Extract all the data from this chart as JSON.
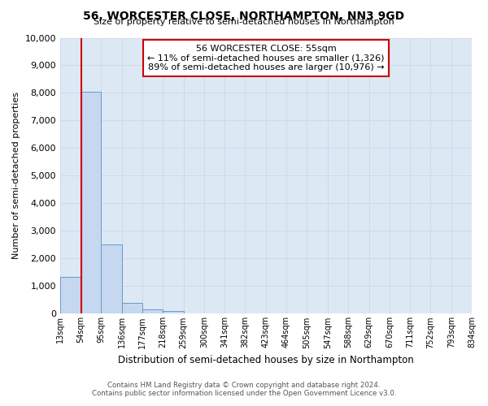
{
  "title": "56, WORCESTER CLOSE, NORTHAMPTON, NN3 9GD",
  "subtitle": "Size of property relative to semi-detached houses in Northampton",
  "xlabel": "Distribution of semi-detached houses by size in Northampton",
  "ylabel": "Number of semi-detached properties",
  "footer_line1": "Contains HM Land Registry data © Crown copyright and database right 2024.",
  "footer_line2": "Contains public sector information licensed under the Open Government Licence v3.0.",
  "annotation_line1": "56 WORCESTER CLOSE: 55sqm",
  "annotation_line2": "← 11% of semi-detached houses are smaller (1,326)",
  "annotation_line3": "89% of semi-detached houses are larger (10,976) →",
  "bin_edges": [
    13,
    54,
    95,
    136,
    177,
    218,
    259,
    300,
    341,
    382,
    423,
    464,
    505,
    547,
    588,
    629,
    670,
    711,
    752,
    793,
    834
  ],
  "bin_counts": [
    1326,
    8050,
    2520,
    380,
    145,
    100,
    0,
    0,
    0,
    0,
    0,
    0,
    0,
    0,
    0,
    0,
    0,
    0,
    0,
    0
  ],
  "bar_color": "#c5d8f0",
  "bar_edge_color": "#6699cc",
  "vline_color": "#cc0000",
  "vline_x": 55,
  "annotation_box_color": "#cc0000",
  "ylim": [
    0,
    10000
  ],
  "grid_color": "#d0d8e8",
  "bg_color": "#dde8f5",
  "tick_labels": [
    "13sqm",
    "54sqm",
    "95sqm",
    "136sqm",
    "177sqm",
    "218sqm",
    "259sqm",
    "300sqm",
    "341sqm",
    "382sqm",
    "423sqm",
    "464sqm",
    "505sqm",
    "547sqm",
    "588sqm",
    "629sqm",
    "670sqm",
    "711sqm",
    "752sqm",
    "793sqm",
    "834sqm"
  ]
}
